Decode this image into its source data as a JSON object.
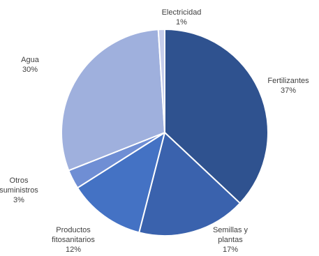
{
  "chart_data": {
    "type": "pie",
    "slices": [
      {
        "label": "Fertilizantes",
        "value": 37,
        "value_label": "37%",
        "color": "#2f528f"
      },
      {
        "label": "Semillas y\nplantas",
        "value": 17,
        "value_label": "17%",
        "color": "#3a62ad"
      },
      {
        "label": "Productos\nfitosanitarios",
        "value": 12,
        "value_label": "12%",
        "color": "#4472c4"
      },
      {
        "label": "Otros\nsuministros",
        "value": 3,
        "value_label": "3%",
        "color": "#6f8ed4"
      },
      {
        "label": "Agua",
        "value": 30,
        "value_label": "30%",
        "color": "#9fb0dd"
      },
      {
        "label": "Electricidad",
        "value": 1,
        "value_label": "1%",
        "color": "#c5cdec"
      }
    ],
    "legend": "none"
  }
}
